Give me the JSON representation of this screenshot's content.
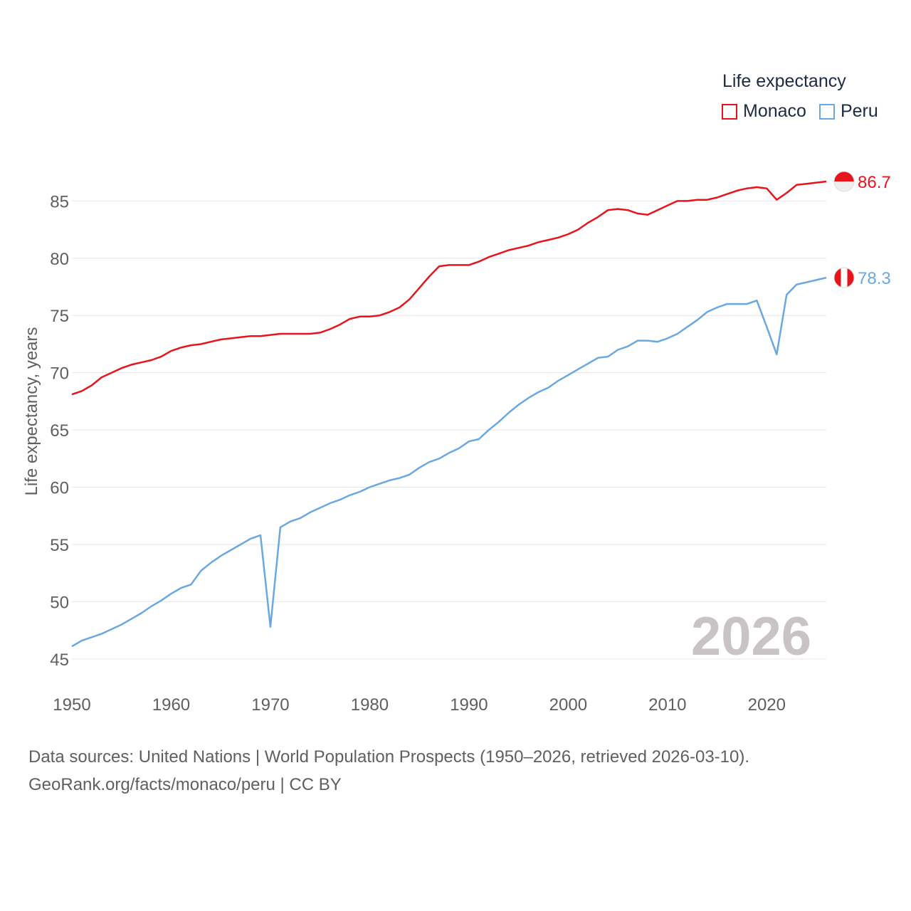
{
  "legend": {
    "title": "Life expectancy",
    "items": [
      {
        "label": "Monaco",
        "color": "#e8141c"
      },
      {
        "label": "Peru",
        "color": "#6aa8e2"
      }
    ]
  },
  "footer": {
    "line1": "Data sources: United Nations | World Population Prospects (1950–2026, retrieved 2026-03-10).",
    "line2": "GeoRank.org/facts/monaco/peru | CC BY"
  },
  "chart_data": {
    "type": "line",
    "title": "Life expectancy",
    "xlabel": "",
    "ylabel": "Life expectancy, years",
    "year_label": "2026",
    "xlim": [
      1950,
      2026
    ],
    "ylim": [
      43.5,
      89
    ],
    "yticks": [
      45,
      50,
      55,
      60,
      65,
      70,
      75,
      80,
      85
    ],
    "xticks": [
      1950,
      1960,
      1970,
      1980,
      1990,
      2000,
      2010,
      2020
    ],
    "grid": true,
    "legend_position": "top-right",
    "series": [
      {
        "name": "Monaco",
        "color": "#e8141c",
        "end_label": "86.7",
        "flag_icon": "monaco-flag-icon",
        "x": [
          1950,
          1951,
          1952,
          1953,
          1954,
          1955,
          1956,
          1957,
          1958,
          1959,
          1960,
          1961,
          1962,
          1963,
          1964,
          1965,
          1966,
          1967,
          1968,
          1969,
          1970,
          1971,
          1972,
          1973,
          1974,
          1975,
          1976,
          1977,
          1978,
          1979,
          1980,
          1981,
          1982,
          1983,
          1984,
          1985,
          1986,
          1987,
          1988,
          1989,
          1990,
          1991,
          1992,
          1993,
          1994,
          1995,
          1996,
          1997,
          1998,
          1999,
          2000,
          2001,
          2002,
          2003,
          2004,
          2005,
          2006,
          2007,
          2008,
          2009,
          2010,
          2011,
          2012,
          2013,
          2014,
          2015,
          2016,
          2017,
          2018,
          2019,
          2020,
          2021,
          2022,
          2023,
          2024,
          2025,
          2026
        ],
        "y": [
          68.1,
          68.4,
          68.9,
          69.6,
          70.0,
          70.4,
          70.7,
          70.9,
          71.1,
          71.4,
          71.9,
          72.2,
          72.4,
          72.5,
          72.7,
          72.9,
          73.0,
          73.1,
          73.2,
          73.2,
          73.3,
          73.4,
          73.4,
          73.4,
          73.4,
          73.5,
          73.8,
          74.2,
          74.7,
          74.9,
          74.9,
          75.0,
          75.3,
          75.7,
          76.4,
          77.4,
          78.4,
          79.3,
          79.4,
          79.4,
          79.4,
          79.7,
          80.1,
          80.4,
          80.7,
          80.9,
          81.1,
          81.4,
          81.6,
          81.8,
          82.1,
          82.5,
          83.1,
          83.6,
          84.2,
          84.3,
          84.2,
          83.9,
          83.8,
          84.2,
          84.6,
          85.0,
          85.0,
          85.1,
          85.1,
          85.3,
          85.6,
          85.9,
          86.1,
          86.2,
          86.1,
          85.1,
          85.7,
          86.4,
          86.5,
          86.6,
          86.7
        ]
      },
      {
        "name": "Peru",
        "color": "#6aa8e2",
        "end_label": "78.3",
        "flag_icon": "peru-flag-icon",
        "x": [
          1950,
          1951,
          1952,
          1953,
          1954,
          1955,
          1956,
          1957,
          1958,
          1959,
          1960,
          1961,
          1962,
          1963,
          1964,
          1965,
          1966,
          1967,
          1968,
          1969,
          1970,
          1971,
          1972,
          1973,
          1974,
          1975,
          1976,
          1977,
          1978,
          1979,
          1980,
          1981,
          1982,
          1983,
          1984,
          1985,
          1986,
          1987,
          1988,
          1989,
          1990,
          1991,
          1992,
          1993,
          1994,
          1995,
          1996,
          1997,
          1998,
          1999,
          2000,
          2001,
          2002,
          2003,
          2004,
          2005,
          2006,
          2007,
          2008,
          2009,
          2010,
          2011,
          2012,
          2013,
          2014,
          2015,
          2016,
          2017,
          2018,
          2019,
          2020,
          2021,
          2022,
          2023,
          2024,
          2025,
          2026
        ],
        "y": [
          46.1,
          46.6,
          46.9,
          47.2,
          47.6,
          48.0,
          48.5,
          49.0,
          49.6,
          50.1,
          50.7,
          51.2,
          51.5,
          52.7,
          53.4,
          54.0,
          54.5,
          55.0,
          55.5,
          55.8,
          47.8,
          56.5,
          57.0,
          57.3,
          57.8,
          58.2,
          58.6,
          58.9,
          59.3,
          59.6,
          60.0,
          60.3,
          60.6,
          60.8,
          61.1,
          61.7,
          62.2,
          62.5,
          63.0,
          63.4,
          64.0,
          64.2,
          65.0,
          65.7,
          66.5,
          67.2,
          67.8,
          68.3,
          68.7,
          69.3,
          69.8,
          70.3,
          70.8,
          71.3,
          71.4,
          72.0,
          72.3,
          72.8,
          72.8,
          72.7,
          73.0,
          73.4,
          74.0,
          74.6,
          75.3,
          75.7,
          76.0,
          76.0,
          76.0,
          76.3,
          74.0,
          71.6,
          76.8,
          77.7,
          77.9,
          78.1,
          78.3
        ]
      }
    ]
  }
}
